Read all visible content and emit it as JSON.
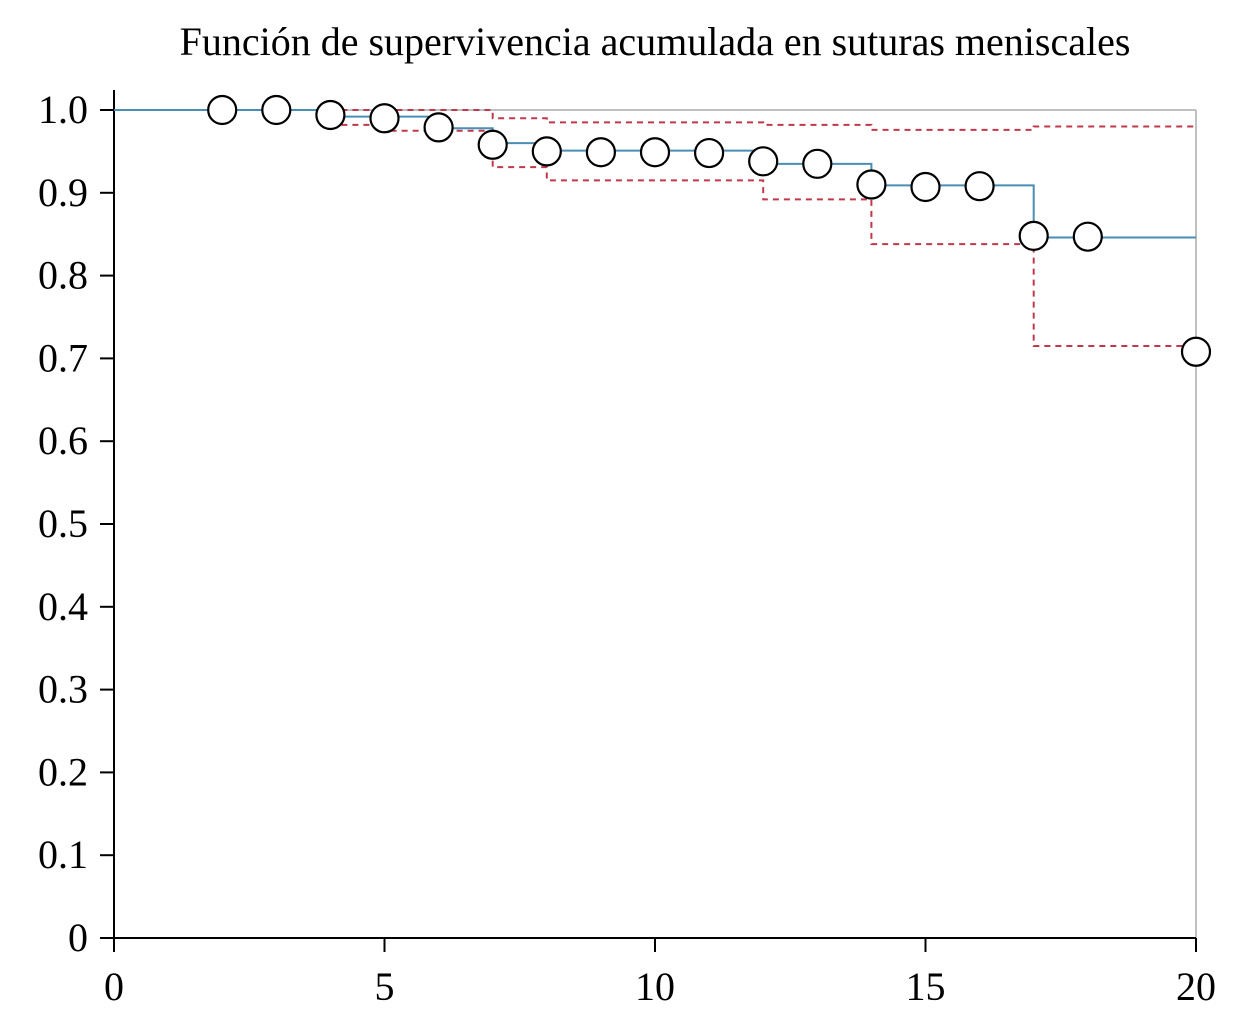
{
  "chart_data": {
    "type": "line",
    "title": "Función de supervivencia acumulada en suturas meniscales",
    "xlabel": "",
    "ylabel": "",
    "xlim": [
      0,
      20
    ],
    "ylim": [
      0,
      1.0
    ],
    "x_ticks": [
      "0",
      "5",
      "10",
      "15",
      "20"
    ],
    "y_ticks": [
      "0",
      "0.1",
      "0.2",
      "0.3",
      "0.4",
      "0.5",
      "0.6",
      "0.7",
      "0.8",
      "0.9",
      "1.0"
    ],
    "grid": false,
    "legend": "none",
    "series": [
      {
        "style": "step-solid",
        "color": "#4a8db5",
        "x": [
          0,
          4,
          6,
          7,
          8,
          12,
          14,
          17,
          20
        ],
        "y": [
          1.0,
          0.992,
          0.978,
          0.96,
          0.951,
          0.935,
          0.909,
          0.846,
          0.846
        ]
      },
      {
        "style": "step-dashed",
        "color": "#c0394b",
        "x": [
          4,
          7,
          8,
          12,
          14,
          17,
          20
        ],
        "y": [
          1.0,
          0.99,
          0.985,
          0.982,
          0.976,
          0.98,
          0.98
        ]
      },
      {
        "style": "step-dashed",
        "color": "#c0394b",
        "x": [
          4,
          5,
          7,
          8,
          12,
          14,
          17,
          20
        ],
        "y": [
          0.982,
          0.975,
          0.931,
          0.915,
          0.892,
          0.838,
          0.715,
          0.715
        ]
      }
    ],
    "markers": {
      "style": "open-circle",
      "x": [
        2,
        3,
        4,
        5,
        6,
        7,
        8,
        9,
        10,
        11,
        12,
        13,
        14,
        15,
        16,
        17,
        18,
        20
      ],
      "y": [
        1.0,
        1.0,
        0.994,
        0.99,
        0.979,
        0.958,
        0.95,
        0.949,
        0.949,
        0.948,
        0.938,
        0.935,
        0.91,
        0.907,
        0.908,
        0.848,
        0.847,
        0.708
      ]
    }
  }
}
